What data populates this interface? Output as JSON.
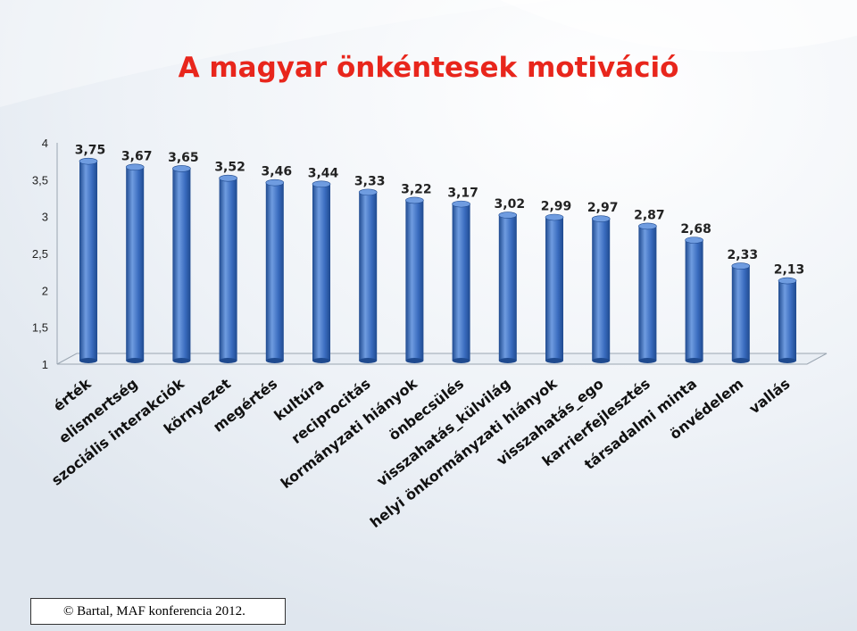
{
  "title": "A magyar önkéntesek motiváció",
  "credit": "© Bartal, MAF konferencia 2012.",
  "colors": {
    "bar": "#3a6cbf",
    "bar_dark": "#1f4a8f",
    "bar_light": "#6f9ce0",
    "title": "#e8261c"
  },
  "chart_data": {
    "type": "bar",
    "title": "A magyar önkéntesek motiváció",
    "xlabel": "",
    "ylabel": "",
    "ylim": [
      1,
      4
    ],
    "yticks": [
      "1",
      "1,5",
      "2",
      "2,5",
      "3",
      "3,5",
      "4"
    ],
    "grid": false,
    "legend": "none",
    "categories": [
      "érték",
      "elismertség",
      "szociális interakciók",
      "környezet",
      "megértés",
      "kultúra",
      "reciprocitás",
      "kormányzati hiányok",
      "önbecsülés",
      "visszahatás_külvilág",
      "helyi önkormányzati hiányok",
      "visszahatás_ego",
      "karrierfejlesztés",
      "társadalmi minta",
      "önvédelem",
      "vallás"
    ],
    "values": [
      3.75,
      3.67,
      3.65,
      3.52,
      3.46,
      3.44,
      3.33,
      3.22,
      3.17,
      3.02,
      2.99,
      2.97,
      2.87,
      2.68,
      2.33,
      2.13
    ],
    "value_labels": [
      "3,75",
      "3,67",
      "3,65",
      "3,52",
      "3,46",
      "3,44",
      "3,33",
      "3,22",
      "3,17",
      "3,02",
      "2,99",
      "2,97",
      "2,87",
      "2,68",
      "2,33",
      "2,13"
    ]
  }
}
